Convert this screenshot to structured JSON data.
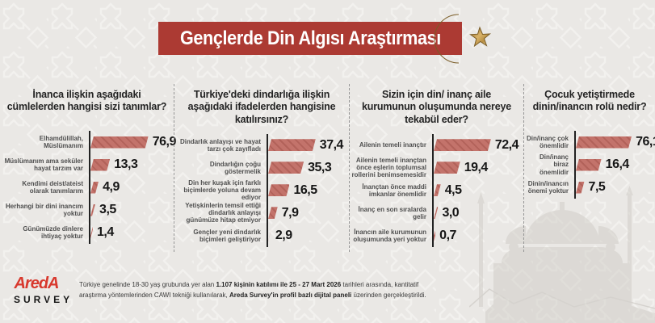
{
  "header": {
    "title": "Gençlerde Din Algısı Araştırması",
    "icon": "crescent-star-icon",
    "banner_color": "#ac3a33"
  },
  "chart_data": [
    {
      "type": "bar",
      "orientation": "horizontal",
      "title": "İnanca ilişkin aşağıdaki cümlelerden hangisi sizi tanımlar?",
      "categories": [
        "Elhamdülillah, Müslümanım",
        "Müslümanım ama seküler hayat tarzım var",
        "Kendimi deist/ateist olarak tanımlarım",
        "Herhangi bir dini inancım yoktur",
        "Günümüzde dinlere ihtiyaç yoktur"
      ],
      "values": [
        76.9,
        13.3,
        4.9,
        3.5,
        1.4
      ],
      "value_labels": [
        "76,9",
        "13,3",
        "4,9",
        "3,5",
        "1,4"
      ],
      "bar_widths_pct": [
        71,
        24,
        10,
        6,
        3
      ],
      "xlim": [
        0,
        100
      ],
      "unit": "%"
    },
    {
      "type": "bar",
      "orientation": "horizontal",
      "title": "Türkiye'deki dindarlığa ilişkin aşağıdaki ifadelerden hangisine katılırsınız?",
      "categories": [
        "Dindarlık anlayışı ve hayat tarzı çok zayıfladı",
        "Dindarlığın çoğu göstermelik",
        "Din her kuşak için farklı biçimlerde yoluna devam ediyor",
        "Yetişkinlerin temsil ettiği dindarlık anlayışı günümüze hitap etmiyor",
        "Gençler yeni dindarlık biçimleri geliştiriyor"
      ],
      "values": [
        37.4,
        35.3,
        16.5,
        7.9,
        2.9
      ],
      "value_labels": [
        "37,4",
        "35,3",
        "16,5",
        "7,9",
        "2,9"
      ],
      "bar_widths_pct": [
        60,
        45,
        27,
        12,
        4
      ],
      "xlim": [
        0,
        100
      ],
      "unit": "%"
    },
    {
      "type": "bar",
      "orientation": "horizontal",
      "title": "Sizin için din/ inanç aile kurumunun oluşumunda nereye tekabül eder?",
      "categories": [
        "Ailenin temeli inançtır",
        "Ailenin temeli inançtan önce eşlerin toplumsal rollerini benimsemesidir",
        "İnançtan önce maddi imkanlar önemlidir",
        "İnanç en son sıralarda gelir",
        "İnancın aile kurumunun oluşumunda yeri yoktur"
      ],
      "values": [
        72.4,
        19.4,
        4.5,
        3.0,
        0.7
      ],
      "value_labels": [
        "72,4",
        "19,4",
        "4,5",
        "3,0",
        "0,7"
      ],
      "bar_widths_pct": [
        65,
        30,
        8,
        5,
        2
      ],
      "xlim": [
        0,
        100
      ],
      "unit": "%"
    },
    {
      "type": "bar",
      "orientation": "horizontal",
      "title": "Çocuk yetiştirmede dinin/inancın rolü nedir?",
      "categories": [
        "Din/inanç çok önemlidir",
        "Din/inanç biraz önemlidir",
        "Dinin/inancın önemi yoktur"
      ],
      "values": [
        76.1,
        16.4,
        7.5
      ],
      "value_labels": [
        "76,1",
        "16,4",
        "7,5"
      ],
      "bar_widths_pct": [
        72,
        33,
        11
      ],
      "xlim": [
        0,
        100
      ],
      "unit": "%"
    }
  ],
  "footer": {
    "logo": {
      "brand": "AredA",
      "sub": "SURVEY"
    },
    "note_segments": [
      {
        "text": "Türkiye genelinde 18-30 yaş grubunda yer alan ",
        "bold": false
      },
      {
        "text": "1.107 kişinin katılımı ile 25 - 27 Mart 2026",
        "bold": true
      },
      {
        "text": " tarihleri arasında, kantitatif araştırma yöntemlerinden CAWI tekniği kullanılarak, ",
        "bold": false
      },
      {
        "text": "Areda Survey'in profil bazlı dijital paneli",
        "bold": true
      },
      {
        "text": " üzerinden gerçekleştirildi.",
        "bold": false
      }
    ]
  },
  "colors": {
    "banner": "#ac3a33",
    "bar_fill": "#c3736b",
    "bar_stripe": "#b2625a",
    "axis": "#222222",
    "title": "#242424",
    "label": "#4f4f4f",
    "value": "#161616",
    "bg": "#eae8e5",
    "logo_red": "#d8382d",
    "logo_black": "#161616",
    "note": "#3a3a3a",
    "divider": "#969696",
    "crescent_gold": "#c49a4e"
  }
}
